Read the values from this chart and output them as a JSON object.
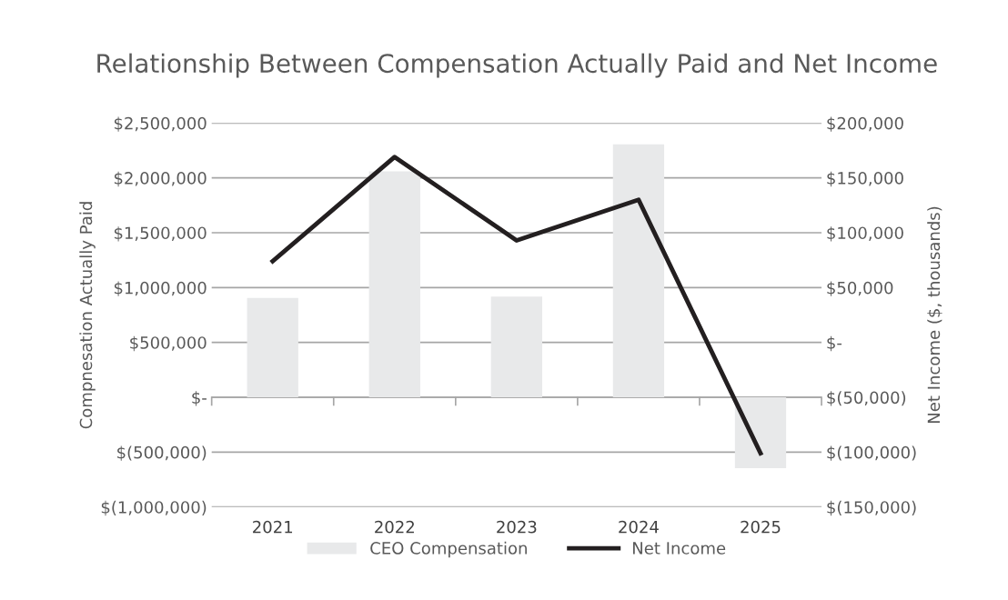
{
  "chart_data": {
    "type": "bar",
    "title": "Relationship Between Compensation Actually Paid and Net Income",
    "ylabel": "Compnesation Actually Paid",
    "y2label": "Net Income ($, thousands)",
    "categories": [
      "2021",
      "2022",
      "2023",
      "2024",
      "2025"
    ],
    "series": [
      {
        "name": "CEO Compensation",
        "color": "#e8e9ea",
        "values": [
          906000,
          2060000,
          917000,
          2305000,
          -647000
        ]
      },
      {
        "name": "Net Income",
        "type": "line",
        "axis": "y2",
        "color": "#231f20",
        "values": [
          74000,
          169000,
          93000,
          130000,
          -101000
        ]
      }
    ],
    "ylim": [
      -1000000,
      2500000
    ],
    "yticks": [
      {
        "value": -1000000,
        "label": "$(1,000,000)"
      },
      {
        "value": -500000,
        "label": "$(500,000)"
      },
      {
        "value": 0,
        "label": "$-"
      },
      {
        "value": 500000,
        "label": "$500,000"
      },
      {
        "value": 1000000,
        "label": "$1,000,000"
      },
      {
        "value": 1500000,
        "label": "$1,500,000"
      },
      {
        "value": 2000000,
        "label": "$2,000,000"
      },
      {
        "value": 2500000,
        "label": "$2,500,000"
      }
    ],
    "y2lim": [
      -150000,
      200000
    ],
    "y2ticks": [
      {
        "value": -150000,
        "label": "$(150,000)"
      },
      {
        "value": -100000,
        "label": "$(100,000)"
      },
      {
        "value": -50000,
        "label": "$(50,000)"
      },
      {
        "value": 0,
        "label": "$-"
      },
      {
        "value": 50000,
        "label": "$50,000"
      },
      {
        "value": 100000,
        "label": "$100,000"
      },
      {
        "value": 150000,
        "label": "$150,000"
      },
      {
        "value": 200000,
        "label": "$200,000"
      }
    ],
    "grid": "y",
    "legend": "bottom",
    "marker": "none",
    "line_style": "solid"
  }
}
